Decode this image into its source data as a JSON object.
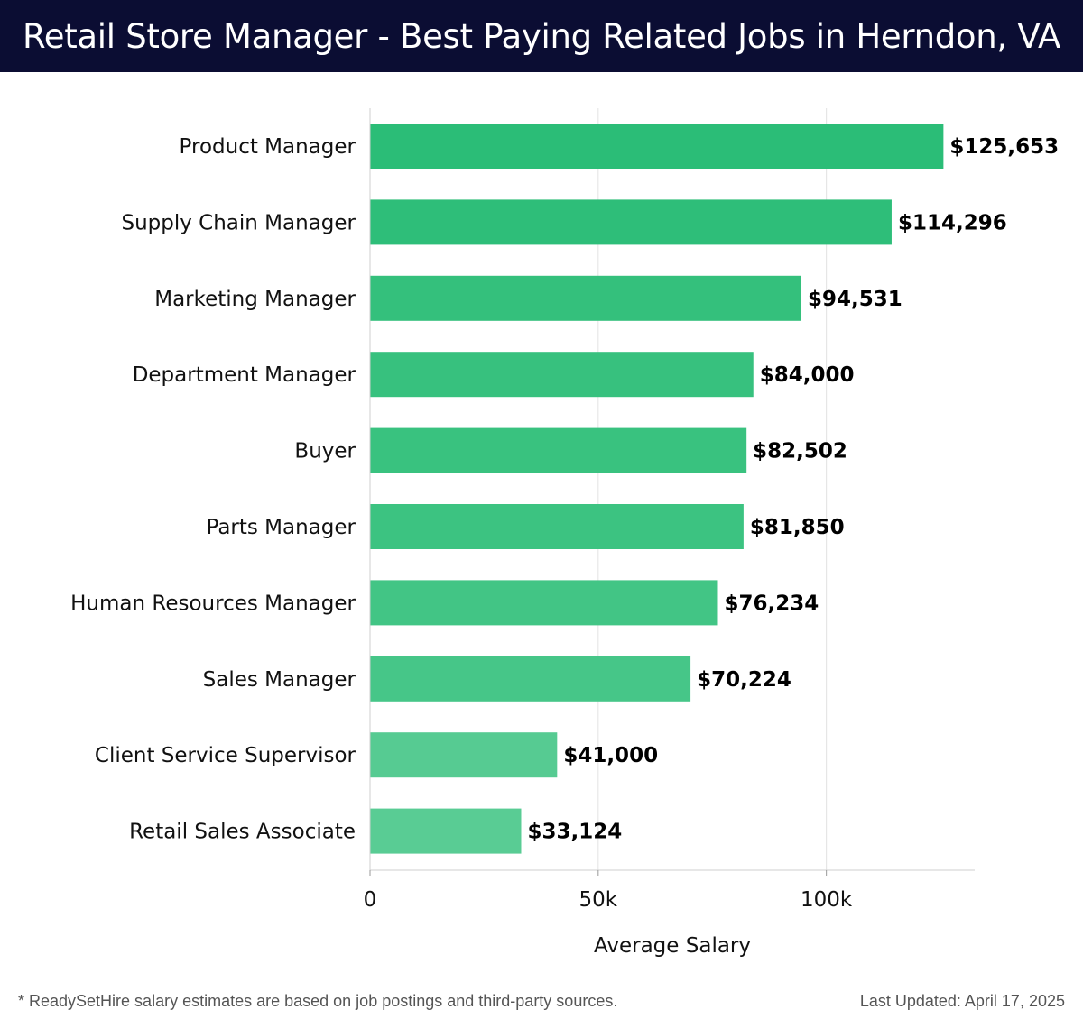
{
  "header": {
    "title": "Retail Store Manager - Best Paying Related Jobs in Herndon, VA"
  },
  "footer": {
    "note": "* ReadySetHire salary estimates are based on job postings and third-party sources.",
    "updated": "Last Updated: April 17, 2025"
  },
  "chart_data": {
    "type": "bar",
    "orientation": "horizontal",
    "categories": [
      "Product Manager",
      "Supply Chain Manager",
      "Marketing Manager",
      "Department Manager",
      "Buyer",
      "Parts Manager",
      "Human Resources Manager",
      "Sales Manager",
      "Client Service Supervisor",
      "Retail Sales Associate"
    ],
    "values": [
      125653,
      114296,
      94531,
      84000,
      82502,
      81850,
      76234,
      70224,
      41000,
      33124
    ],
    "value_labels": [
      "$125,653",
      "$114,296",
      "$94,531",
      "$84,000",
      "$82,502",
      "$81,850",
      "$76,234",
      "$70,224",
      "$41,000",
      "$33,124"
    ],
    "xlabel": "Average Salary",
    "ylabel": "",
    "xlim": [
      0,
      132500
    ],
    "xticks": [
      0,
      50000,
      100000
    ],
    "xtick_labels": [
      "0",
      "50k",
      "100k"
    ],
    "grid": "vertical",
    "bar_colors": [
      "#2bbd77",
      "#2ebe79",
      "#34c07c",
      "#37c17e",
      "#39c27f",
      "#3cc381",
      "#42c585",
      "#46c688",
      "#56cb92",
      "#59cc94"
    ]
  }
}
